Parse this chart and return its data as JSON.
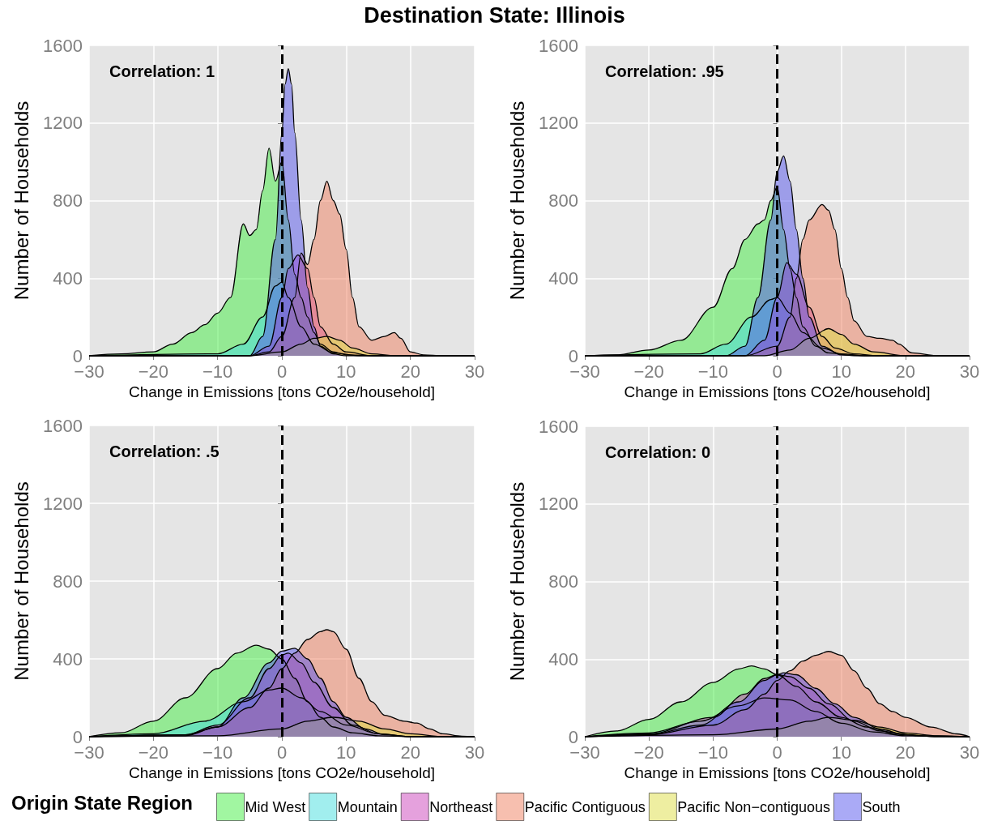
{
  "chart_data": [
    {
      "type": "area",
      "title": "Destination State: Illinois",
      "xlabel": "Change in Emissions [tons CO2e/household]",
      "ylabel": "Number of Households",
      "annotations": [
        "Correlation: 1"
      ],
      "xlim": [
        -30,
        30
      ],
      "xticks": [
        -30,
        -20,
        -10,
        0,
        10,
        20,
        30
      ],
      "ylim": [
        0,
        1600
      ],
      "yticks": [
        0,
        400,
        800,
        1200,
        1600
      ],
      "grid": true,
      "ref_lines": [
        {
          "axis": "x",
          "value": 0,
          "color": "#000000",
          "line_style": "dashed"
        }
      ],
      "series": [
        {
          "color": "#44ee44",
          "x": [
            -30,
            -25,
            -20,
            -17,
            -14,
            -12,
            -10,
            -8,
            -6,
            -5,
            -4,
            -3,
            -2,
            -1,
            0,
            1,
            2,
            3,
            4,
            5,
            6,
            8,
            10,
            15,
            20,
            30
          ],
          "values": [
            0,
            10,
            20,
            60,
            120,
            160,
            220,
            300,
            680,
            620,
            650,
            850,
            1070,
            900,
            1000,
            700,
            420,
            300,
            200,
            120,
            60,
            20,
            5,
            0,
            0,
            0
          ]
        },
        {
          "color": "#44dddd",
          "x": [
            -30,
            -10,
            -6,
            -3,
            -1,
            0,
            1,
            3,
            5,
            8,
            12,
            30
          ],
          "values": [
            0,
            10,
            60,
            200,
            360,
            380,
            300,
            150,
            60,
            15,
            0,
            0
          ]
        },
        {
          "color": "#cc44bb",
          "x": [
            -30,
            -5,
            -2,
            0,
            1,
            2.5,
            4,
            5,
            6,
            8,
            10,
            14,
            30
          ],
          "values": [
            0,
            0,
            50,
            300,
            450,
            520,
            450,
            300,
            150,
            60,
            20,
            0,
            0
          ]
        },
        {
          "color": "#f08060",
          "x": [
            -30,
            -5,
            -2,
            0,
            2,
            3,
            4,
            5,
            6,
            7,
            8,
            9,
            10,
            11,
            12,
            14,
            16,
            17.5,
            18.5,
            20,
            22,
            25,
            30
          ],
          "values": [
            0,
            0,
            20,
            100,
            300,
            530,
            470,
            600,
            800,
            900,
            800,
            730,
            550,
            300,
            150,
            80,
            100,
            120,
            90,
            20,
            5,
            0,
            0
          ]
        },
        {
          "color": "#dddd44",
          "x": [
            -30,
            -5,
            0,
            3,
            5,
            7,
            9,
            11,
            14,
            18,
            30
          ],
          "values": [
            0,
            0,
            20,
            60,
            90,
            100,
            80,
            40,
            10,
            0,
            0
          ]
        },
        {
          "color": "#5555ee",
          "x": [
            -30,
            -5,
            -3,
            -1,
            0,
            0.5,
            1,
            1.5,
            2,
            3,
            4,
            5,
            6,
            8,
            10,
            30
          ],
          "values": [
            0,
            0,
            100,
            600,
            1150,
            1400,
            1480,
            1400,
            1150,
            700,
            350,
            150,
            50,
            10,
            0,
            0
          ]
        }
      ]
    },
    {
      "type": "area",
      "xlabel": "Change in Emissions [tons CO2e/household]",
      "ylabel": "Number of Households",
      "annotations": [
        "Correlation: .95"
      ],
      "xlim": [
        -30,
        30
      ],
      "xticks": [
        -30,
        -20,
        -10,
        0,
        10,
        20,
        30
      ],
      "ylim": [
        0,
        1600
      ],
      "yticks": [
        0,
        400,
        800,
        1200,
        1600
      ],
      "grid": true,
      "ref_lines": [
        {
          "axis": "x",
          "value": 0,
          "color": "#000000",
          "line_style": "dashed"
        }
      ],
      "series": [
        {
          "color": "#44ee44",
          "x": [
            -30,
            -25,
            -20,
            -15,
            -10,
            -7,
            -5,
            -3,
            -2,
            -1,
            0,
            1,
            2,
            3,
            4,
            6,
            8,
            12,
            30
          ],
          "values": [
            0,
            5,
            30,
            80,
            250,
            450,
            600,
            680,
            700,
            800,
            870,
            650,
            450,
            300,
            150,
            50,
            15,
            0,
            0
          ]
        },
        {
          "color": "#44dddd",
          "x": [
            -30,
            -12,
            -8,
            -4,
            -1,
            0,
            2,
            4,
            7,
            10,
            14,
            30
          ],
          "values": [
            0,
            10,
            60,
            200,
            290,
            300,
            220,
            120,
            40,
            10,
            0,
            0
          ]
        },
        {
          "color": "#cc44bb",
          "x": [
            -30,
            -5,
            -2,
            0,
            1.5,
            3,
            5,
            7,
            9,
            12,
            16,
            30
          ],
          "values": [
            0,
            0,
            80,
            300,
            480,
            420,
            250,
            100,
            40,
            10,
            0,
            0
          ]
        },
        {
          "color": "#f08060",
          "x": [
            -30,
            -5,
            0,
            2,
            3,
            4,
            5,
            7,
            8,
            9,
            10,
            11,
            12,
            14,
            16,
            18,
            19,
            21,
            25,
            30
          ],
          "values": [
            0,
            0,
            50,
            200,
            400,
            600,
            700,
            780,
            750,
            650,
            450,
            300,
            180,
            100,
            90,
            80,
            60,
            15,
            0,
            0
          ]
        },
        {
          "color": "#dddd44",
          "x": [
            -30,
            -2,
            2,
            5,
            8,
            10,
            12,
            15,
            20,
            30
          ],
          "values": [
            0,
            0,
            30,
            90,
            140,
            110,
            60,
            20,
            0,
            0
          ]
        },
        {
          "color": "#5555ee",
          "x": [
            -30,
            -8,
            -5,
            -3,
            -1,
            0,
            1,
            2,
            3,
            4,
            5,
            7,
            10,
            14,
            30
          ],
          "values": [
            0,
            0,
            50,
            300,
            700,
            950,
            1030,
            900,
            650,
            400,
            200,
            50,
            5,
            0,
            0
          ]
        }
      ]
    },
    {
      "type": "area",
      "xlabel": "Change in Emissions [tons CO2e/household]",
      "ylabel": "Number of Households",
      "annotations": [
        "Correlation: .5"
      ],
      "legend_title": "Origin State Region",
      "xlim": [
        -30,
        30
      ],
      "xticks": [
        -30,
        -20,
        -10,
        0,
        10,
        20,
        30
      ],
      "ylim": [
        0,
        1600
      ],
      "yticks": [
        0,
        400,
        800,
        1200,
        1600
      ],
      "grid": true,
      "legend": "bottom",
      "ref_lines": [
        {
          "axis": "x",
          "value": 0,
          "color": "#000000",
          "line_style": "dashed"
        }
      ],
      "series": [
        {
          "name": "Mid West",
          "color": "#44ee44",
          "x": [
            -30,
            -25,
            -20,
            -15,
            -10,
            -7,
            -4,
            -2,
            0,
            2,
            4,
            6,
            8,
            11,
            15,
            20,
            30
          ],
          "values": [
            0,
            20,
            80,
            200,
            350,
            430,
            470,
            450,
            400,
            300,
            180,
            100,
            50,
            20,
            5,
            0,
            0
          ]
        },
        {
          "name": "Mountain",
          "color": "#44dddd",
          "x": [
            -30,
            -20,
            -12,
            -6,
            -2,
            0,
            3,
            6,
            10,
            15,
            20,
            30
          ],
          "values": [
            0,
            15,
            80,
            180,
            240,
            250,
            200,
            130,
            60,
            15,
            0,
            0
          ]
        },
        {
          "name": "Northeast",
          "color": "#cc44bb",
          "x": [
            -30,
            -15,
            -10,
            -5,
            -2,
            0,
            1,
            3,
            5,
            8,
            11,
            15,
            20,
            30
          ],
          "values": [
            0,
            10,
            60,
            200,
            350,
            420,
            430,
            380,
            280,
            150,
            60,
            15,
            0,
            0
          ]
        },
        {
          "name": "Pacific Contiguous",
          "color": "#f08060",
          "x": [
            -30,
            -15,
            -10,
            -5,
            -2,
            0,
            2,
            4,
            6,
            7,
            8,
            10,
            12,
            14,
            16,
            19,
            21,
            23,
            25,
            28,
            30
          ],
          "values": [
            0,
            10,
            50,
            150,
            250,
            350,
            430,
            500,
            540,
            550,
            540,
            450,
            300,
            180,
            110,
            80,
            70,
            40,
            15,
            3,
            0
          ]
        },
        {
          "name": "Pacific Non−contiguous",
          "color": "#dddd44",
          "x": [
            -30,
            -10,
            0,
            4,
            8,
            12,
            16,
            20,
            25,
            30
          ],
          "values": [
            0,
            5,
            40,
            80,
            100,
            80,
            40,
            15,
            0,
            0
          ]
        },
        {
          "name": "South",
          "color": "#5555ee",
          "x": [
            -30,
            -15,
            -10,
            -6,
            -2,
            0,
            2,
            4,
            6,
            8,
            10,
            13,
            16,
            20,
            30
          ],
          "values": [
            0,
            5,
            50,
            200,
            380,
            440,
            455,
            400,
            300,
            180,
            100,
            40,
            10,
            0,
            0
          ]
        }
      ]
    },
    {
      "type": "area",
      "xlabel": "Change in Emissions [tons CO2e/household]",
      "ylabel": "Number of Households",
      "annotations": [
        "Correlation: 0"
      ],
      "xlim": [
        -30,
        30
      ],
      "xticks": [
        -30,
        -20,
        -10,
        0,
        10,
        20,
        30
      ],
      "ylim": [
        0,
        1600
      ],
      "yticks": [
        0,
        400,
        800,
        1200,
        1600
      ],
      "grid": true,
      "ref_lines": [
        {
          "axis": "x",
          "value": 0,
          "color": "#000000",
          "line_style": "dashed"
        }
      ],
      "series": [
        {
          "color": "#44ee44",
          "x": [
            -30,
            -25,
            -20,
            -15,
            -10,
            -6,
            -4,
            -2,
            0,
            3,
            6,
            10,
            14,
            18,
            22,
            30
          ],
          "values": [
            0,
            30,
            90,
            180,
            280,
            350,
            365,
            350,
            320,
            260,
            180,
            100,
            50,
            20,
            5,
            0
          ]
        },
        {
          "color": "#44dddd",
          "x": [
            -30,
            -20,
            -12,
            -6,
            -2,
            2,
            6,
            10,
            15,
            20,
            30
          ],
          "values": [
            0,
            20,
            80,
            160,
            200,
            190,
            130,
            70,
            25,
            5,
            0
          ]
        },
        {
          "color": "#cc44bb",
          "x": [
            -30,
            -20,
            -10,
            -5,
            -2,
            0,
            2,
            5,
            8,
            12,
            16,
            20,
            25,
            30
          ],
          "values": [
            0,
            15,
            100,
            220,
            300,
            320,
            310,
            250,
            170,
            80,
            30,
            10,
            0,
            0
          ]
        },
        {
          "color": "#f08060",
          "x": [
            -30,
            -20,
            -10,
            -5,
            -2,
            0,
            2,
            4,
            6,
            8,
            10,
            12,
            14,
            16,
            18,
            20,
            24,
            28,
            30
          ],
          "values": [
            0,
            10,
            60,
            140,
            220,
            290,
            340,
            390,
            420,
            440,
            420,
            340,
            250,
            170,
            130,
            100,
            50,
            15,
            0
          ]
        },
        {
          "color": "#dddd44",
          "x": [
            -30,
            -10,
            0,
            5,
            8,
            12,
            16,
            20,
            25,
            30
          ],
          "values": [
            0,
            10,
            40,
            80,
            100,
            85,
            50,
            20,
            5,
            0
          ]
        },
        {
          "color": "#5555ee",
          "x": [
            -30,
            -20,
            -12,
            -6,
            -2,
            0,
            1,
            3,
            6,
            9,
            12,
            16,
            20,
            25,
            30
          ],
          "values": [
            0,
            10,
            60,
            180,
            290,
            320,
            330,
            320,
            250,
            170,
            100,
            40,
            10,
            0,
            0
          ]
        }
      ]
    }
  ]
}
